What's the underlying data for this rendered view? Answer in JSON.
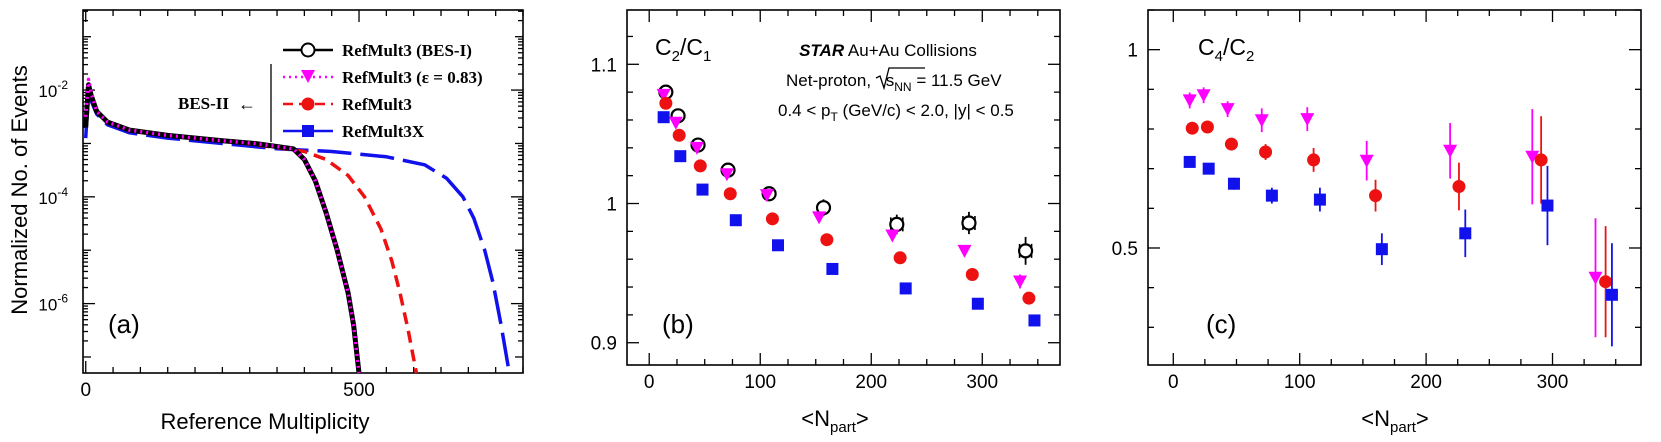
{
  "colors": {
    "black": "#000000",
    "magenta": "#ff00ff",
    "red": "#ee1111",
    "blue": "#1111ee"
  },
  "chart_data": [
    {
      "panel": "(a)",
      "type": "line",
      "title": "",
      "xlabel": "Reference Multiplicity",
      "ylabel": "Normalized No. of Events",
      "yscale": "log",
      "xlim": [
        -5,
        800
      ],
      "ylim_exp": [
        -7.3,
        -0.5
      ],
      "xticks": [
        0,
        500
      ],
      "yticks": [
        {
          "exp": -2,
          "label": "10",
          "sup": "-2"
        },
        {
          "exp": -4,
          "label": "10",
          "sup": "-4"
        },
        {
          "exp": -6,
          "label": "10",
          "sup": "-6"
        }
      ],
      "bes2_label": "BES-II",
      "series": [
        {
          "name": "RefMult3 (BES-I)",
          "color": "#000000",
          "marker": "open-circle",
          "style": "solid",
          "x": [
            0,
            5,
            10,
            20,
            40,
            80,
            150,
            250,
            310,
            380,
            400,
            420,
            440,
            460,
            480,
            490,
            500
          ],
          "y": [
            -2.7,
            -1.9,
            -2.1,
            -2.4,
            -2.6,
            -2.75,
            -2.85,
            -2.95,
            -3.0,
            -3.1,
            -3.3,
            -3.7,
            -4.3,
            -5.0,
            -5.8,
            -6.4,
            -7.3
          ]
        },
        {
          "name": "RefMult3 (ε = 0.83)",
          "color": "#ff00ff",
          "marker": "triangle-down",
          "style": "dotted",
          "x": [
            0,
            5,
            10,
            20,
            40,
            80,
            150,
            250,
            310,
            380,
            400,
            420,
            440,
            460,
            480,
            490,
            500
          ],
          "y": [
            -2.5,
            -1.8,
            -2.05,
            -2.4,
            -2.6,
            -2.75,
            -2.85,
            -2.95,
            -3.0,
            -3.1,
            -3.3,
            -3.7,
            -4.3,
            -5.0,
            -5.8,
            -6.4,
            -7.3
          ]
        },
        {
          "name": "RefMult3",
          "color": "#ee1111",
          "marker": "filled-circle",
          "style": "dashed",
          "x": [
            0,
            5,
            10,
            20,
            40,
            80,
            150,
            250,
            330,
            400,
            440,
            480,
            510,
            540,
            560,
            575,
            590,
            605
          ],
          "y": [
            -2.5,
            -1.9,
            -2.1,
            -2.4,
            -2.6,
            -2.75,
            -2.85,
            -2.95,
            -3.05,
            -3.15,
            -3.3,
            -3.6,
            -4.0,
            -4.6,
            -5.2,
            -5.8,
            -6.5,
            -7.3
          ]
        },
        {
          "name": "RefMult3X",
          "color": "#1111ee",
          "marker": "filled-square",
          "style": "longdash",
          "x": [
            0,
            5,
            10,
            20,
            40,
            80,
            150,
            250,
            350,
            450,
            550,
            620,
            660,
            690,
            710,
            730,
            745,
            760,
            775
          ],
          "y": [
            -2.9,
            -2.0,
            -2.2,
            -2.45,
            -2.65,
            -2.8,
            -2.9,
            -3.0,
            -3.1,
            -3.15,
            -3.25,
            -3.4,
            -3.65,
            -4.0,
            -4.4,
            -5.0,
            -5.6,
            -6.4,
            -7.3
          ]
        }
      ]
    },
    {
      "panel": "(b)",
      "type": "scatter",
      "ylabel_main": "C",
      "ylabel_text": "C2/C1",
      "xlabel": "<Npart>",
      "xlim": [
        -20,
        370
      ],
      "ylim": [
        0.884,
        1.139
      ],
      "xticks": [
        0,
        100,
        200,
        300
      ],
      "yticks": [
        0.9,
        1,
        1.1
      ],
      "ytick_labels": [
        "0.9",
        "1",
        "1.1"
      ],
      "annotation": {
        "line1_bold": "STAR",
        "line1_rest": " Au+Au Collisions",
        "line2_pre": "Net-proton, ",
        "line2_root": "s",
        "line2_root_sub": "NN",
        "line2_post": " = 11.5 GeV",
        "line3": "0.4 < pT (GeV/c) < 2.0, |y| < 0.5"
      },
      "series": [
        {
          "name": "RefMult3 (BES-I)",
          "color": "#000000",
          "marker": "open-circle",
          "x": [
            15,
            26,
            44,
            71,
            108,
            157,
            223,
            288,
            339
          ],
          "y": [
            1.08,
            1.063,
            1.042,
            1.024,
            1.007,
            0.997,
            0.985,
            0.986,
            0.966
          ],
          "err": [
            0.005,
            0.005,
            0.005,
            0.005,
            0.005,
            0.006,
            0.007,
            0.008,
            0.01
          ]
        },
        {
          "name": "RefMult3 (ε = 0.83)",
          "color": "#ff00ff",
          "marker": "triangle-down",
          "x": [
            13,
            24,
            43,
            70,
            106,
            153,
            219,
            284,
            334
          ],
          "y": [
            1.078,
            1.058,
            1.04,
            1.021,
            1.006,
            0.99,
            0.977,
            0.966,
            0.944
          ],
          "err": [
            0.003,
            0.003,
            0.003,
            0.003,
            0.003,
            0.003,
            0.004,
            0.004,
            0.005
          ]
        },
        {
          "name": "RefMult3",
          "color": "#ee1111",
          "marker": "filled-circle",
          "x": [
            15,
            27,
            46,
            73,
            111,
            160,
            226,
            291,
            342
          ],
          "y": [
            1.072,
            1.049,
            1.027,
            1.007,
            0.989,
            0.974,
            0.961,
            0.949,
            0.932
          ],
          "err": [
            0.003,
            0.003,
            0.003,
            0.003,
            0.003,
            0.003,
            0.004,
            0.004,
            0.004
          ]
        },
        {
          "name": "RefMult3X",
          "color": "#1111ee",
          "marker": "filled-square",
          "x": [
            13,
            28,
            48,
            78,
            116,
            165,
            231,
            296,
            347
          ],
          "y": [
            1.062,
            1.034,
            1.01,
            0.988,
            0.97,
            0.953,
            0.939,
            0.928,
            0.916
          ],
          "err": [
            0.002,
            0.002,
            0.002,
            0.002,
            0.002,
            0.003,
            0.003,
            0.003,
            0.003
          ]
        }
      ]
    },
    {
      "panel": "(c)",
      "type": "scatter",
      "ylabel_text": "C4/C2",
      "xlabel": "<Npart>",
      "xlim": [
        -20,
        370
      ],
      "ylim": [
        0.205,
        1.1
      ],
      "xticks": [
        0,
        100,
        200,
        300
      ],
      "yticks": [
        0.5,
        1
      ],
      "ytick_labels": [
        "0.5",
        "1"
      ],
      "series": [
        {
          "name": "RefMult3 (ε = 0.83)",
          "color": "#ff00ff",
          "marker": "triangle-down",
          "x": [
            13,
            24,
            43,
            70,
            106,
            153,
            219,
            284,
            334
          ],
          "y": [
            0.872,
            0.885,
            0.85,
            0.822,
            0.825,
            0.72,
            0.745,
            0.73,
            0.425
          ],
          "err": [
            0.02,
            0.02,
            0.02,
            0.03,
            0.03,
            0.05,
            0.07,
            0.12,
            0.15
          ]
        },
        {
          "name": "RefMult3",
          "color": "#ee1111",
          "marker": "filled-circle",
          "x": [
            15,
            27,
            46,
            73,
            111,
            160,
            226,
            291,
            342
          ],
          "y": [
            0.802,
            0.805,
            0.762,
            0.742,
            0.722,
            0.632,
            0.655,
            0.722,
            0.415
          ],
          "err": [
            0.015,
            0.015,
            0.015,
            0.02,
            0.03,
            0.04,
            0.06,
            0.11,
            0.14
          ]
        },
        {
          "name": "RefMult3X",
          "color": "#1111ee",
          "marker": "filled-square",
          "x": [
            13,
            28,
            48,
            78,
            116,
            165,
            231,
            296,
            347
          ],
          "y": [
            0.717,
            0.7,
            0.662,
            0.632,
            0.622,
            0.497,
            0.537,
            0.607,
            0.382
          ],
          "err": [
            0.012,
            0.012,
            0.015,
            0.02,
            0.03,
            0.04,
            0.06,
            0.1,
            0.13
          ]
        }
      ]
    }
  ]
}
